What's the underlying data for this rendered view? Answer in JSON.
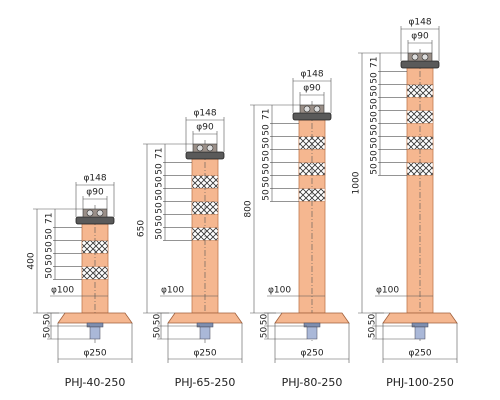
{
  "posts": [
    {
      "model": "PHJ-40-250",
      "height": "400",
      "cap_diameter": "φ148",
      "top_diameter": "φ90",
      "body_diameter": "φ100",
      "base_diameter": "φ250",
      "segments": [
        "71",
        "50",
        "50",
        "50",
        "50"
      ],
      "base_heights": [
        "50",
        "50"
      ]
    },
    {
      "model": "PHJ-65-250",
      "height": "650",
      "cap_diameter": "φ148",
      "top_diameter": "φ90",
      "body_diameter": "φ100",
      "base_diameter": "φ250",
      "segments": [
        "71",
        "50",
        "50",
        "50",
        "50",
        "50",
        "50"
      ],
      "base_heights": [
        "50",
        "50"
      ]
    },
    {
      "model": "PHJ-80-250",
      "height": "800",
      "cap_diameter": "φ148",
      "top_diameter": "φ90",
      "body_diameter": "φ100",
      "base_diameter": "φ250",
      "segments": [
        "71",
        "50",
        "50",
        "50",
        "50",
        "50",
        "50"
      ],
      "base_heights": [
        "50",
        "50"
      ]
    },
    {
      "model": "PHJ-100-250",
      "height": "1000",
      "cap_diameter": "φ148",
      "top_diameter": "φ90",
      "body_diameter": "φ100",
      "base_diameter": "φ250",
      "segments": [
        "71",
        "50",
        "50",
        "50",
        "50",
        "50",
        "50",
        "50",
        "50"
      ],
      "base_heights": [
        "50",
        "50"
      ]
    }
  ]
}
